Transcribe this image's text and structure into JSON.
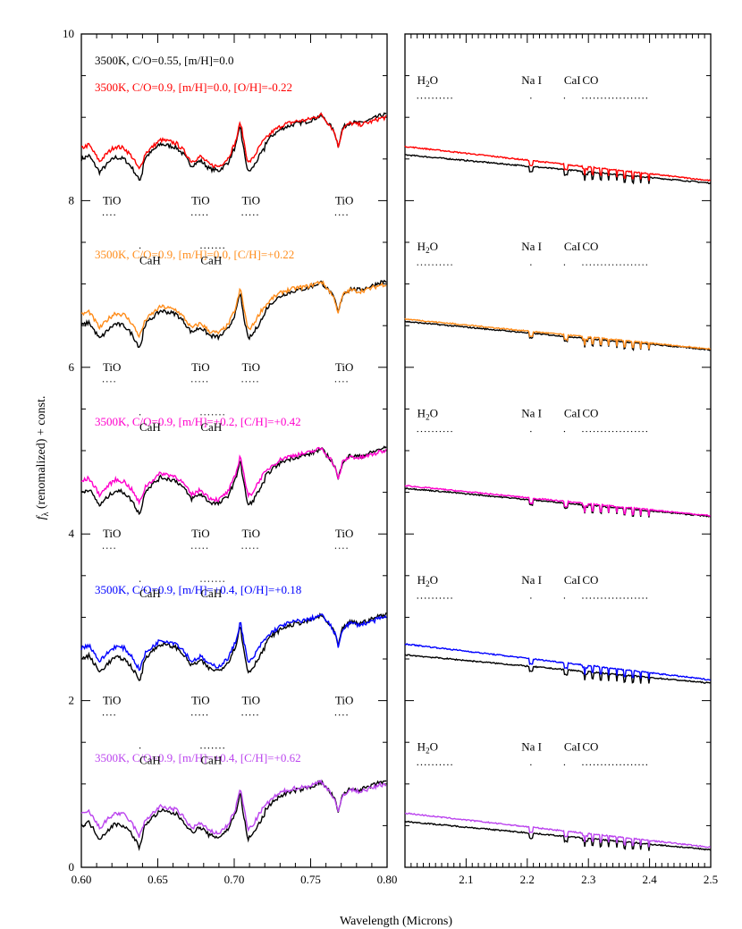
{
  "chart_data": {
    "type": "line",
    "xlabel": "Wavelength (Microns)",
    "ylabel_symbol": "f",
    "ylabel_subscript": "λ",
    "ylabel_rest": " (renomalized) + const.",
    "panels": [
      {
        "name": "optical",
        "xlim": [
          0.6,
          0.8
        ],
        "ylim": [
          0,
          10
        ],
        "xticks": [
          "0.60",
          "0.65",
          "0.70",
          "0.75",
          "0.80"
        ],
        "yticks": [
          "0",
          "2",
          "4",
          "6",
          "8",
          "10"
        ]
      },
      {
        "name": "infrared",
        "xlim": [
          2.0,
          2.5
        ],
        "ylim": [
          0,
          10
        ],
        "xticks": [
          "2.1",
          "2.2",
          "2.3",
          "2.4",
          "2.5"
        ]
      }
    ],
    "series": [
      {
        "name": "3500K, C/O=0.55, [m/H]=0.0",
        "color": "#000000",
        "role": "reference"
      },
      {
        "name": "3500K, C/O=0.9, [m/H]=0.0, [O/H]=-0.22",
        "color": "#ff0000",
        "offset": 8
      },
      {
        "name": "3500K, C/O=0.9, [m/H]=0.0, [C/H]=+0.22",
        "color": "#ff8c1a",
        "offset": 6
      },
      {
        "name": "3500K, C/O=0.9, [m/H]=+0.2, [C/H]=+0.42",
        "color": "#ff00cc",
        "offset": 4
      },
      {
        "name": "3500K, C/O=0.9, [m/H]=+0.4, [O/H]=+0.18",
        "color": "#0000ff",
        "offset": 2
      },
      {
        "name": "3500K, C/O=0.9, [m/H]=+0.4, [C/H]=+0.62",
        "color": "#bb44ee",
        "offset": 0
      }
    ],
    "optical_features": [
      {
        "label": "TiO",
        "x0": 0.614,
        "x1": 0.623,
        "row": "upper"
      },
      {
        "label": "CaH",
        "x0": 0.638,
        "x1": 0.64,
        "row": "lower"
      },
      {
        "label": "TiO",
        "x0": 0.672,
        "x1": 0.683,
        "row": "upper"
      },
      {
        "label": "CaH",
        "x0": 0.678,
        "x1": 0.695,
        "row": "lower"
      },
      {
        "label": "TiO",
        "x0": 0.705,
        "x1": 0.716,
        "row": "upper"
      },
      {
        "label": "TiO",
        "x0": 0.766,
        "x1": 0.775,
        "row": "upper"
      }
    ],
    "ir_features": [
      {
        "label_main": "H",
        "label_sub": "2",
        "label_tail": "O",
        "x0": 2.02,
        "x1": 2.08
      },
      {
        "label_main": "Na I",
        "label_sub": "",
        "label_tail": "",
        "x0": 2.205,
        "x1": 2.21
      },
      {
        "label_main": "CaI",
        "label_sub": "",
        "label_tail": "",
        "x0": 2.26,
        "x1": 2.265
      },
      {
        "label_main": "CO",
        "label_sub": "",
        "label_tail": "",
        "x0": 2.29,
        "x1": 2.4
      }
    ]
  }
}
